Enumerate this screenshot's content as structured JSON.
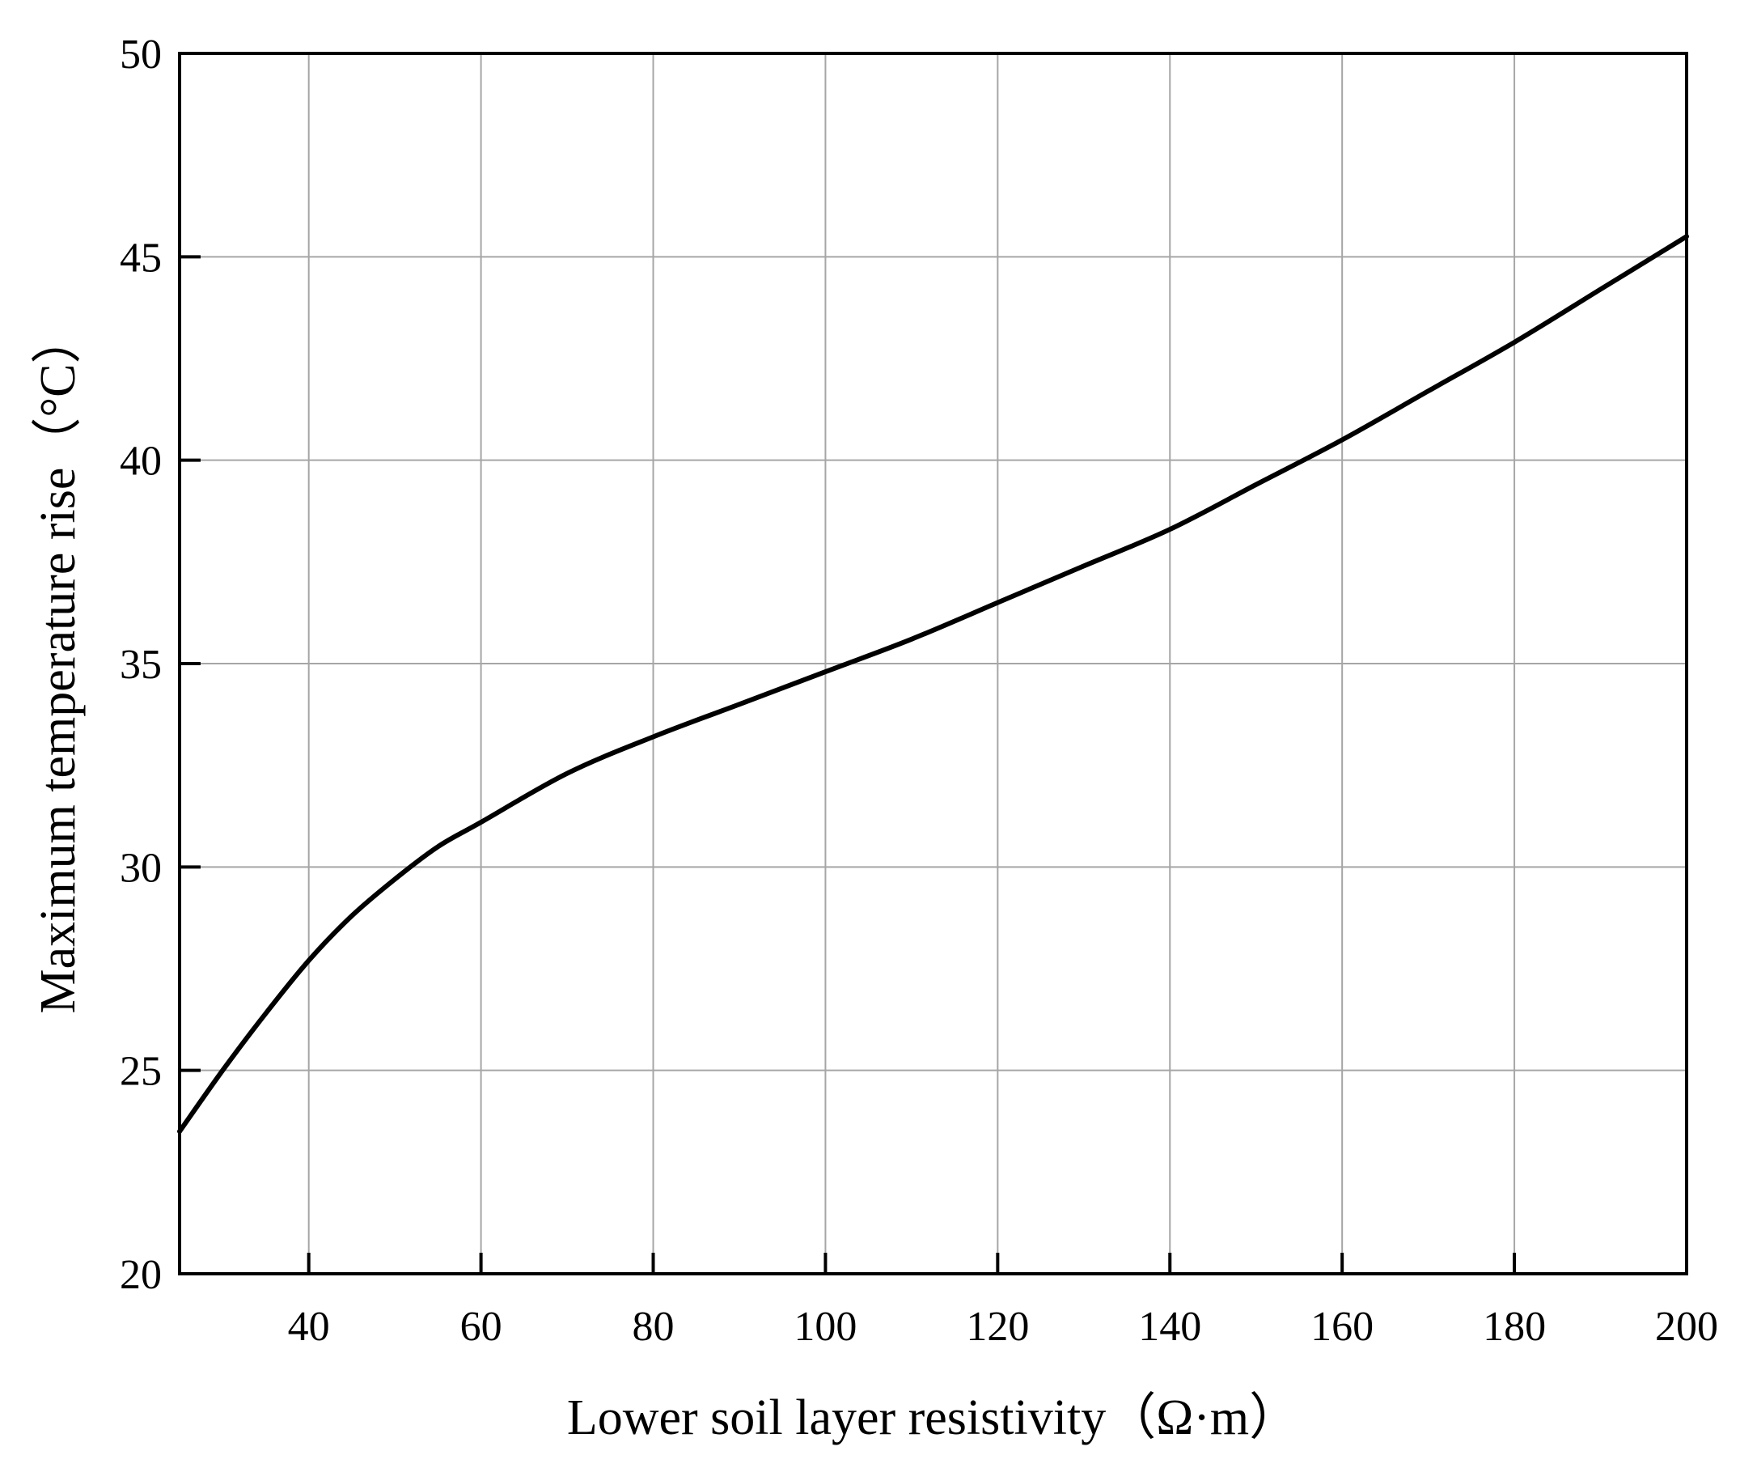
{
  "chart_data": {
    "type": "line",
    "title": "",
    "xlabel": "Lower soil layer resistivity（Ω·m）",
    "ylabel": "Maximum temperature rise（°C）",
    "xlim": [
      25,
      200
    ],
    "ylim": [
      20,
      50
    ],
    "xticks": [
      40,
      60,
      80,
      100,
      120,
      140,
      160,
      180,
      200
    ],
    "yticks": [
      20,
      25,
      30,
      35,
      40,
      45,
      50
    ],
    "grid": true,
    "legend": "none",
    "line_color": "#000000",
    "grid_color": "#a6a6a6",
    "series": [
      {
        "x": [
          25,
          30,
          35,
          40,
          45,
          50,
          55,
          60,
          70,
          80,
          90,
          100,
          110,
          120,
          130,
          140,
          150,
          160,
          170,
          180,
          190,
          200
        ],
        "y": [
          23.5,
          25.0,
          26.4,
          27.7,
          28.8,
          29.7,
          30.5,
          31.1,
          32.3,
          33.2,
          34.0,
          34.8,
          35.6,
          36.5,
          37.4,
          38.3,
          39.4,
          40.5,
          41.7,
          42.9,
          44.2,
          45.5
        ]
      }
    ]
  }
}
